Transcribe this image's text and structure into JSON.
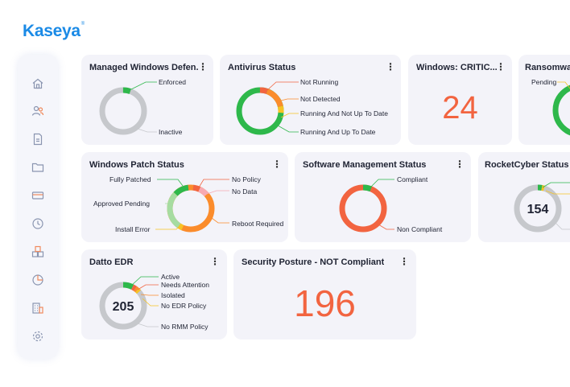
{
  "brand": {
    "logo_text": "Kaseya",
    "logo_mark": "®",
    "accent": "#1a8ae6"
  },
  "sidebar": {
    "items": [
      {
        "name": "home-icon"
      },
      {
        "name": "users-icon"
      },
      {
        "name": "document-icon"
      },
      {
        "name": "folder-icon"
      },
      {
        "name": "ticket-icon"
      },
      {
        "name": "clock-icon"
      },
      {
        "name": "packages-icon"
      },
      {
        "name": "pie-chart-icon"
      },
      {
        "name": "building-icon"
      },
      {
        "name": "settings-icon"
      }
    ]
  },
  "colors": {
    "green": "#2eb84b",
    "light_green": "#a6dca1",
    "gray": "#c6c8cc",
    "orange": "#fb8c2c",
    "red_orange": "#f26440",
    "yellow": "#f7c324",
    "pink": "#f7a9b2"
  },
  "cards": {
    "managed_windows_defender": {
      "title": "Managed Windows Defen...",
      "legend": [
        "Enforced",
        "Inactive"
      ]
    },
    "antivirus_status": {
      "title": "Antivirus Status",
      "legend": [
        "Not Running",
        "Not Detected",
        "Running And Not Up To Date",
        "Running And Up To Date"
      ]
    },
    "windows_critical": {
      "title": "Windows: CRITIC...",
      "value": "24"
    },
    "ransomware": {
      "title": "Ransomwar",
      "legend": [
        "Pending"
      ]
    },
    "windows_patch_status": {
      "title": "Windows Patch Status",
      "legend": [
        "Fully Patched",
        "Approved Pending",
        "Install Error",
        "No Policy",
        "No Data",
        "Reboot Required"
      ]
    },
    "software_management_status": {
      "title": "Software Management Status",
      "legend": [
        "Compliant",
        "Non Compliant"
      ]
    },
    "rocketcyber_status": {
      "title": "RocketCyber Status",
      "center_value": "154"
    },
    "datto_edr": {
      "title": "Datto EDR",
      "center_value": "205",
      "legend": [
        "Active",
        "Needs Attention",
        "Isolated",
        "No EDR Policy",
        "No RMM Policy"
      ]
    },
    "security_posture": {
      "title": "Security Posture - NOT Compliant",
      "value": "196"
    }
  }
}
